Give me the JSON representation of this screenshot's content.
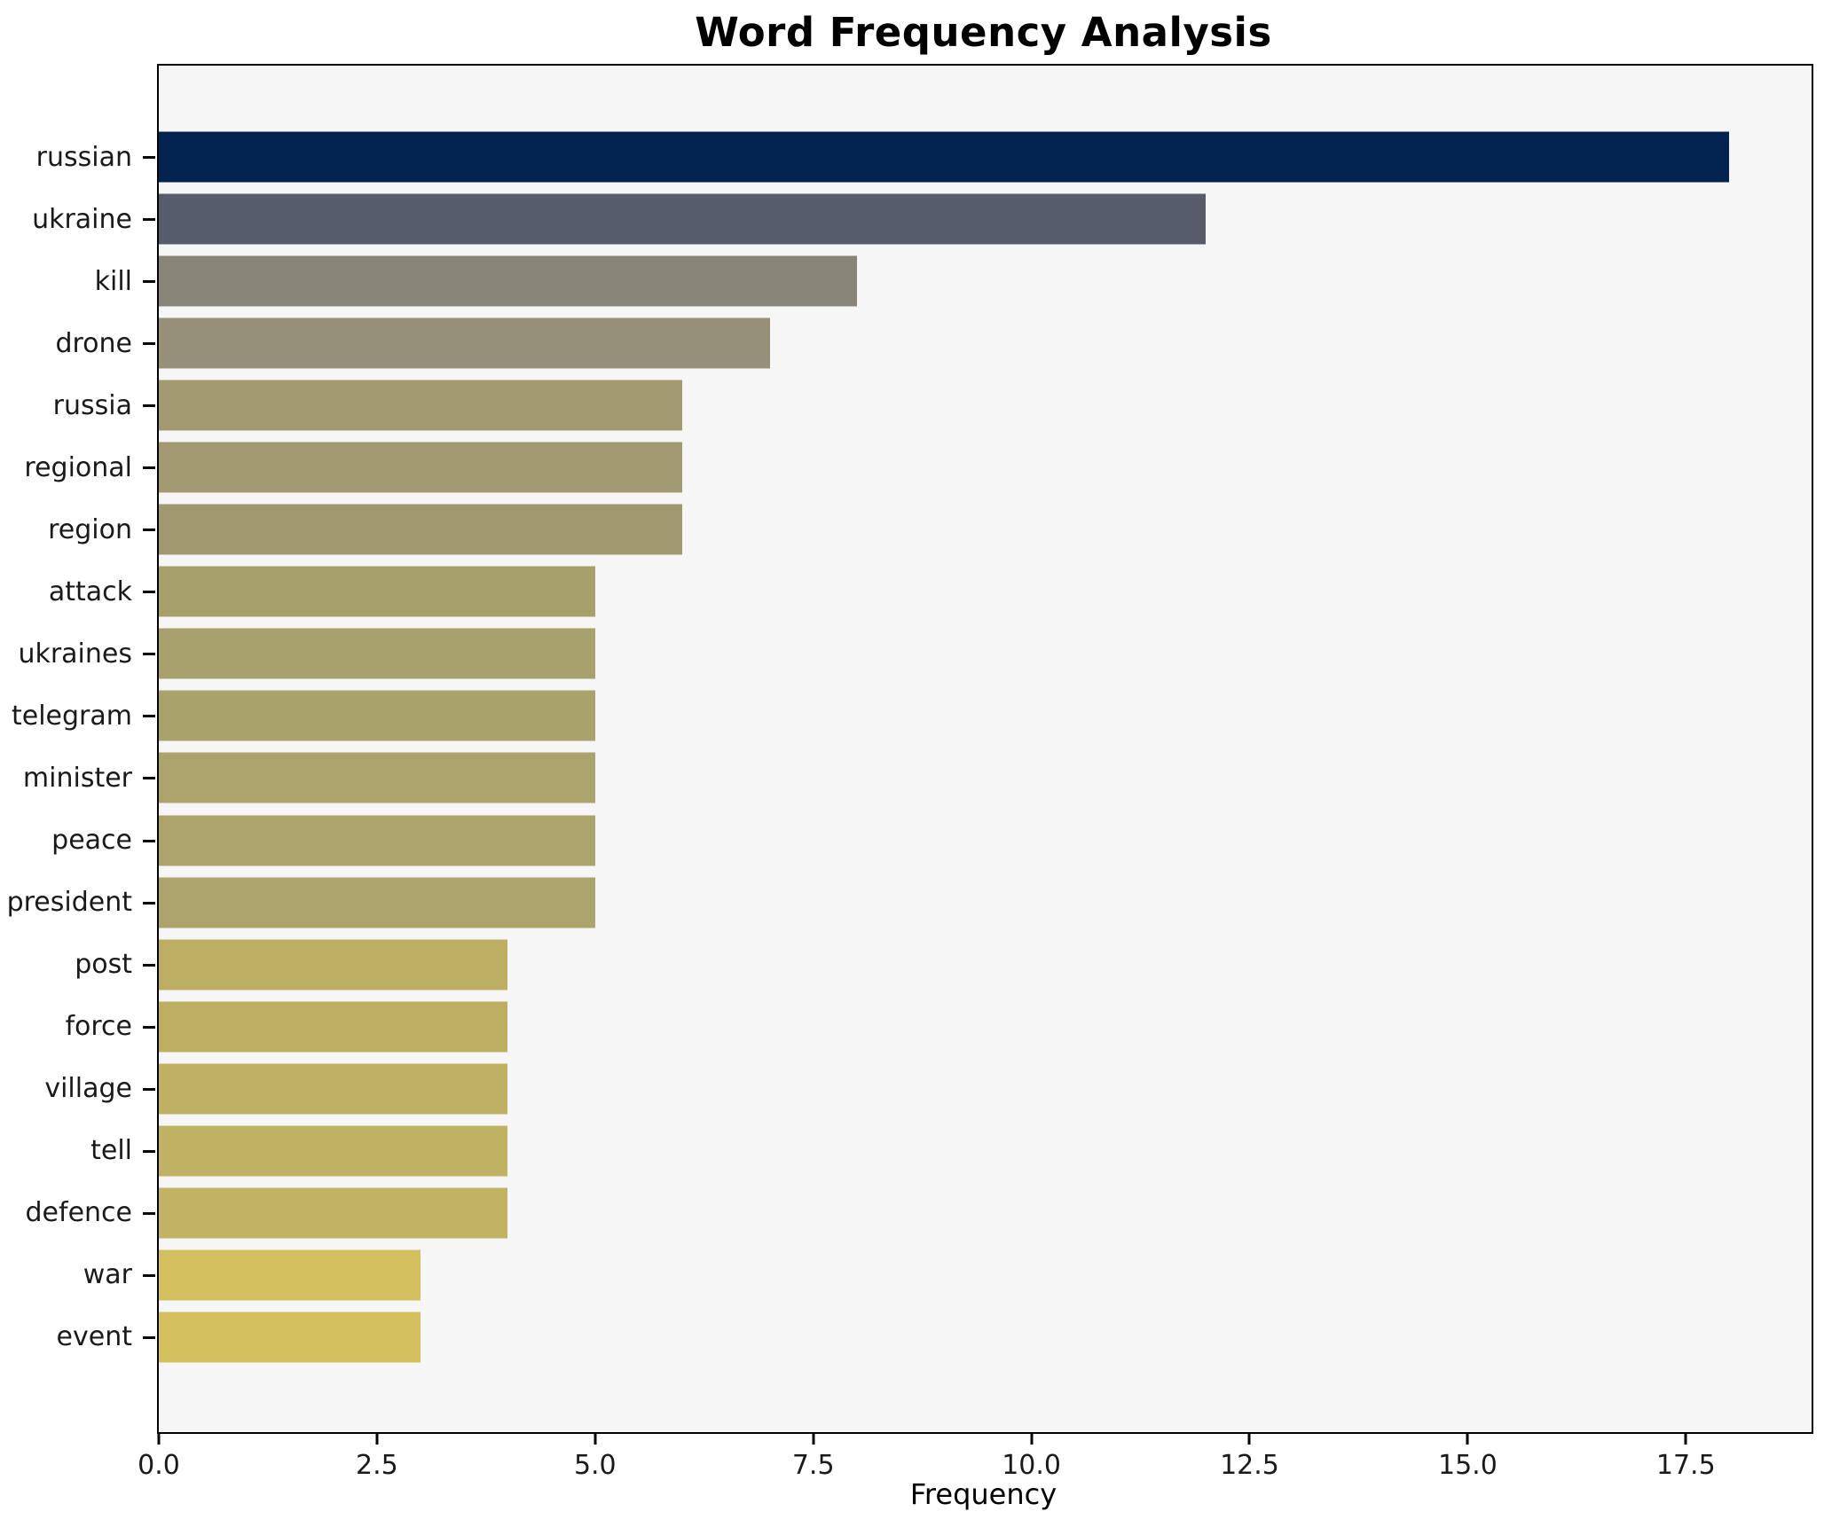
{
  "chart_data": {
    "type": "bar",
    "orientation": "horizontal",
    "title": "Word Frequency Analysis",
    "xlabel": "Frequency",
    "ylabel": "",
    "categories": [
      "russian",
      "ukraine",
      "kill",
      "drone",
      "russia",
      "regional",
      "region",
      "attack",
      "ukraines",
      "telegram",
      "minister",
      "peace",
      "president",
      "post",
      "force",
      "village",
      "tell",
      "defence",
      "war",
      "event"
    ],
    "values": [
      18,
      12,
      8,
      7,
      6,
      6,
      6,
      5,
      5,
      5,
      5,
      5,
      5,
      4,
      4,
      4,
      4,
      4,
      3,
      3
    ],
    "bar_colors": [
      "#02234e",
      "#575c6d",
      "#888578",
      "#969078",
      "#a29a71",
      "#a29a70",
      "#a0986f",
      "#a8a06b",
      "#a9a16b",
      "#aaa26b",
      "#aba26c",
      "#aca36c",
      "#ada46d",
      "#bcae62",
      "#bdaf62",
      "#bfb163",
      "#c0b263",
      "#c1b363",
      "#d2bf5e",
      "#d3c05e"
    ],
    "x_ticks": [
      "0.0",
      "2.5",
      "5.0",
      "7.5",
      "10.0",
      "12.5",
      "15.0",
      "17.5"
    ],
    "x_tick_values": [
      0,
      2.5,
      5,
      7.5,
      10,
      12.5,
      15,
      17.5
    ],
    "xlim": [
      0,
      18.9
    ],
    "grid": false,
    "legend": null,
    "plot_bg": "#f6f6f7",
    "figure_bg": "#ffffff",
    "spine_color": "#000000"
  }
}
